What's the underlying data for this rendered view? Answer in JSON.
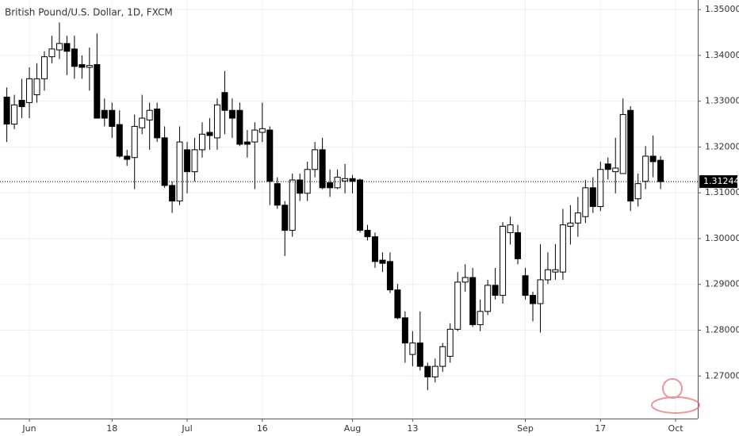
{
  "chart_data": {
    "type": "candlestick",
    "title": "British Pound/U.S. Dollar, 1D, FXCM",
    "categories": [
      null,
      null,
      null,
      "Jun",
      null,
      null,
      null,
      null,
      null,
      null,
      null,
      null,
      null,
      null,
      "18",
      null,
      null,
      null,
      null,
      null,
      null,
      null,
      null,
      null,
      "Jul",
      null,
      null,
      null,
      null,
      null,
      null,
      null,
      null,
      null,
      "16",
      null,
      null,
      null,
      null,
      null,
      null,
      null,
      null,
      null,
      null,
      null,
      "Aug",
      null,
      null,
      null,
      null,
      null,
      null,
      null,
      "13",
      null,
      null,
      null,
      null,
      null,
      null,
      null,
      null,
      null,
      null,
      null,
      null,
      null,
      null,
      "Sep",
      null,
      null,
      null,
      null,
      null,
      null,
      null,
      null,
      null,
      "17",
      null,
      null,
      null,
      null,
      null,
      null,
      null,
      null,
      null,
      "Oct"
    ],
    "series": [
      {
        "up_color": "#ffffff",
        "down_color": "#000000",
        "wick_color": "#000000",
        "open": [
          1.3309,
          1.325,
          1.3302,
          1.3297,
          1.3314,
          1.3349,
          1.3397,
          1.3412,
          1.3426,
          1.3414,
          1.338,
          1.3374,
          1.338,
          1.328,
          1.328,
          1.3249,
          1.318,
          1.3177,
          1.3242,
          1.3259,
          1.3283,
          1.322,
          1.3116,
          1.3082,
          1.3194,
          1.3146,
          1.3194,
          1.3232,
          1.322,
          1.3319,
          1.328,
          1.328,
          1.3211,
          1.3211,
          1.3232,
          1.3237,
          1.312,
          1.3073,
          1.3018,
          1.3128,
          1.3099,
          1.3151,
          1.3194,
          1.3122,
          1.3111,
          1.3126,
          1.3131,
          1.3128,
          1.3018,
          1.3004,
          1.2953,
          1.295,
          1.2888,
          1.2827,
          1.2747,
          1.2772,
          1.2721,
          1.2698,
          1.2721,
          1.2743,
          1.2802,
          1.2905,
          1.2915,
          1.2812,
          1.2841,
          1.2898,
          1.2876,
          1.3013,
          1.3013,
          1.2919,
          1.2876,
          1.2858,
          1.291,
          1.2927,
          1.2927,
          1.3027,
          1.3034,
          1.3048,
          1.3111,
          1.307,
          1.3163,
          1.3146,
          1.3142,
          1.328,
          1.3087,
          1.3125,
          1.318,
          1.3171,
          null,
          null
        ],
        "high": [
          1.333,
          1.3314,
          1.3349,
          1.3374,
          1.3383,
          1.3409,
          1.3443,
          1.3472,
          1.3443,
          1.3443,
          1.34,
          1.3417,
          1.3448,
          1.3306,
          1.3297,
          1.328,
          1.3194,
          1.3271,
          1.3314,
          1.3297,
          1.3297,
          1.3245,
          1.3125,
          1.3245,
          1.3211,
          1.322,
          1.3254,
          1.3263,
          1.3306,
          1.3366,
          1.3306,
          1.3297,
          1.3237,
          1.3254,
          1.3297,
          1.3245,
          1.3134,
          1.3082,
          1.3142,
          1.3142,
          1.3168,
          1.3211,
          1.322,
          1.3151,
          1.3151,
          1.3163,
          1.3139,
          1.3131,
          1.303,
          1.3013,
          1.297,
          1.297,
          1.2901,
          1.2841,
          1.2798,
          1.2841,
          1.2729,
          1.2738,
          1.2772,
          1.2815,
          1.2927,
          1.2944,
          1.2936,
          1.2867,
          1.291,
          1.2936,
          1.3036,
          1.3048,
          1.303,
          1.2936,
          1.2884,
          1.2988,
          1.297,
          1.2988,
          1.3065,
          1.3073,
          1.3091,
          1.3128,
          1.3134,
          1.3168,
          1.3177,
          1.322,
          1.3306,
          1.3289,
          1.3142,
          1.3202,
          1.3225,
          1.318,
          null,
          null
        ],
        "low": [
          1.3211,
          1.3239,
          1.3263,
          1.3263,
          1.3297,
          1.3323,
          1.3383,
          1.3392,
          1.3357,
          1.3349,
          1.3349,
          1.3323,
          1.3263,
          1.3245,
          1.322,
          1.3177,
          1.3159,
          1.3108,
          1.3228,
          1.3194,
          1.3211,
          1.3111,
          1.3056,
          1.3073,
          1.3099,
          1.3125,
          1.3177,
          1.3194,
          1.3194,
          1.3228,
          1.322,
          1.3202,
          1.3177,
          1.3108,
          1.3211,
          1.3073,
          1.3065,
          1.2962,
          1.3004,
          1.3082,
          1.3082,
          1.3134,
          1.3108,
          1.3091,
          1.3108,
          1.3099,
          1.3099,
          1.3013,
          1.2996,
          1.2936,
          1.2927,
          1.2881,
          1.2824,
          1.2729,
          1.2721,
          1.2712,
          1.2669,
          1.2686,
          1.2709,
          1.2729,
          1.2798,
          1.2884,
          1.2807,
          1.2798,
          1.2833,
          1.2867,
          1.2858,
          1.2987,
          1.2944,
          1.2867,
          1.2819,
          1.2795,
          1.2901,
          1.291,
          1.291,
          1.2987,
          1.3004,
          1.3034,
          1.3056,
          1.306,
          1.3129,
          1.3099,
          1.3142,
          1.306,
          1.307,
          1.3108,
          1.3134,
          1.3108,
          null,
          null
        ],
        "close": [
          1.325,
          1.3292,
          1.3288,
          1.3349,
          1.3349,
          1.3397,
          1.3414,
          1.3426,
          1.3409,
          1.3376,
          1.3374,
          1.3378,
          1.3263,
          1.3263,
          1.3245,
          1.318,
          1.3173,
          1.3245,
          1.3263,
          1.328,
          1.322,
          1.3116,
          1.3082,
          1.3211,
          1.3146,
          1.3194,
          1.3228,
          1.3225,
          1.3292,
          1.328,
          1.3263,
          1.3206,
          1.3206,
          1.3237,
          1.324,
          1.3125,
          1.3073,
          1.3018,
          1.3128,
          1.3099,
          1.3151,
          1.3194,
          1.3111,
          1.3111,
          1.3134,
          1.3131,
          1.3125,
          1.3018,
          1.3004,
          1.295,
          1.2946,
          1.2888,
          1.2827,
          1.2772,
          1.2772,
          1.2721,
          1.2698,
          1.2721,
          1.2764,
          1.2802,
          1.2905,
          1.2915,
          1.2812,
          1.2841,
          1.2898,
          1.2876,
          1.3027,
          1.303,
          1.2956,
          1.2876,
          1.2858,
          1.291,
          1.2932,
          1.2932,
          1.303,
          1.3034,
          1.3056,
          1.3111,
          1.307,
          1.3151,
          1.3151,
          1.3154,
          1.3271,
          1.3082,
          1.312,
          1.318,
          1.3168,
          1.31244,
          null,
          null
        ]
      }
    ],
    "last_price": 1.31244,
    "ylim": [
      1.2607,
      1.3521
    ],
    "yticks": [
      {
        "value": 1.27,
        "label": "1.27000"
      },
      {
        "value": 1.28,
        "label": "1.28000"
      },
      {
        "value": 1.29,
        "label": "1.29000"
      },
      {
        "value": 1.3,
        "label": "1.30000"
      },
      {
        "value": 1.31,
        "label": "1.31000"
      },
      {
        "value": 1.32,
        "label": "1.32000"
      },
      {
        "value": 1.33,
        "label": "1.33000"
      },
      {
        "value": 1.34,
        "label": "1.34000"
      },
      {
        "value": 1.35,
        "label": "1.35000"
      }
    ],
    "grid": true
  }
}
